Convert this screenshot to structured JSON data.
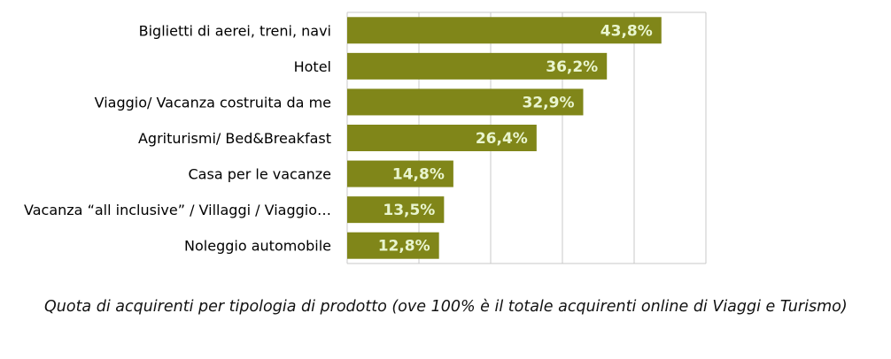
{
  "chart_data": {
    "type": "bar",
    "orientation": "horizontal",
    "categories": [
      "Biglietti di aerei, treni, navi",
      "Hotel",
      "Viaggio/ Vacanza costruita da me",
      "Agriturismi/ Bed&Breakfast",
      "Casa per le vacanze",
      "Vacanza “all inclusive” / Villaggi / Viaggio…",
      "Noleggio automobile"
    ],
    "values": [
      43.8,
      36.2,
      32.9,
      26.4,
      14.8,
      13.5,
      12.8
    ],
    "value_labels": [
      "43,8%",
      "36,2%",
      "32,9%",
      "26,4%",
      "14,8%",
      "13,5%",
      "12,8%"
    ],
    "xlim": [
      0,
      50
    ],
    "grid": true,
    "bar_color": "#808619",
    "label_color": "#e9f5cf",
    "grid_color": "#c8c8c8"
  },
  "caption": "Quota di acquirenti per tipologia di prodotto (ove 100% è il totale acquirenti online di Viaggi e Turismo)"
}
